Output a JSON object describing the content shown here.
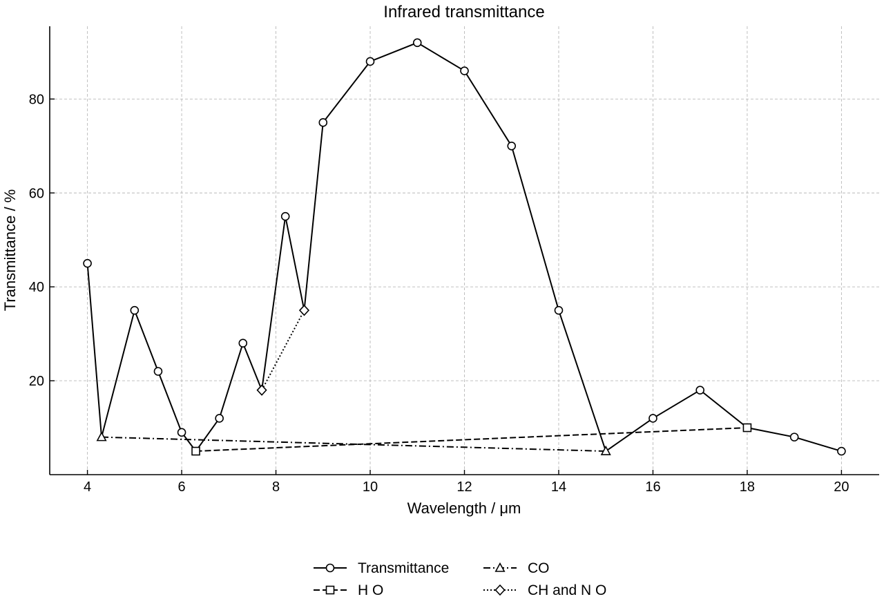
{
  "chart_data": {
    "type": "line",
    "title": "Infrared transmittance",
    "xlabel": "Wavelength / μm",
    "ylabel": "Transmittance / %",
    "xlim": [
      3.2,
      20.8
    ],
    "ylim": [
      0,
      95.5
    ],
    "xticks": [
      4,
      6,
      8,
      10,
      12,
      14,
      16,
      18,
      20
    ],
    "yticks": [
      20,
      40,
      60,
      80
    ],
    "grid": true,
    "legend_position": "bottom-center",
    "series": [
      {
        "name": "Transmittance",
        "marker": "circle",
        "line_style": "solid",
        "color": "#000000",
        "x": [
          4,
          4.3,
          5,
          5.5,
          6,
          6.3,
          6.8,
          7.3,
          7.7,
          8.2,
          8.6,
          9,
          10,
          11,
          12,
          13,
          14,
          15,
          16,
          17,
          18,
          19,
          20
        ],
        "y": [
          45,
          8,
          35,
          22,
          9,
          5,
          12,
          28,
          18,
          55,
          35,
          75,
          88,
          92,
          86,
          70,
          35,
          5,
          12,
          18,
          10,
          8,
          5
        ],
        "marked_x": [
          4,
          5,
          5.5,
          6,
          6.8,
          7.3,
          8.2,
          9,
          10,
          11,
          12,
          13,
          14,
          16,
          17,
          19,
          20
        ]
      },
      {
        "name": "H O",
        "marker": "square",
        "line_style": "dashed",
        "color": "#000000",
        "x": [
          6.3,
          18
        ],
        "y": [
          5,
          10
        ]
      },
      {
        "name": "CO",
        "marker": "triangle",
        "line_style": "dashdot",
        "color": "#000000",
        "x": [
          4.3,
          15
        ],
        "y": [
          8,
          5
        ]
      },
      {
        "name": "CH  and N O",
        "marker": "diamond",
        "line_style": "dotted",
        "color": "#000000",
        "x": [
          7.7,
          8.6
        ],
        "y": [
          18,
          35
        ]
      }
    ]
  }
}
